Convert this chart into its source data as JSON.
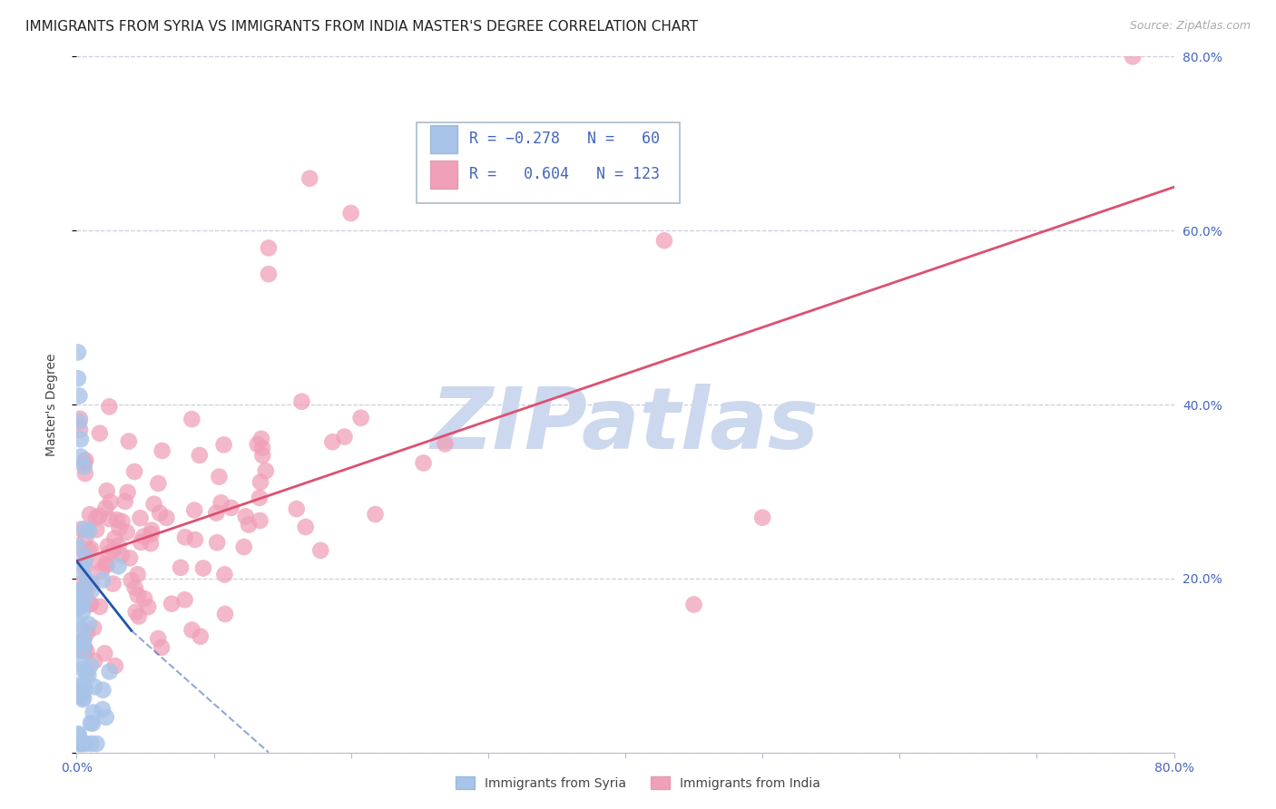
{
  "title": "IMMIGRANTS FROM SYRIA VS IMMIGRANTS FROM INDIA MASTER'S DEGREE CORRELATION CHART",
  "source": "Source: ZipAtlas.com",
  "ylabel": "Master's Degree",
  "xmin": 0.0,
  "xmax": 0.8,
  "ymin": 0.0,
  "ymax": 0.8,
  "syria_R": -0.278,
  "syria_N": 60,
  "india_R": 0.604,
  "india_N": 123,
  "syria_color": "#a8c4e8",
  "india_color": "#f0a0b8",
  "syria_line_color": "#2255aa",
  "india_line_color": "#dd5070",
  "watermark_color": "#ccd8ee",
  "background_color": "#ffffff",
  "grid_color": "#ccccdd",
  "tick_color": "#4466bb",
  "title_fontsize": 11,
  "tick_fontsize": 10,
  "legend_fontsize": 12
}
